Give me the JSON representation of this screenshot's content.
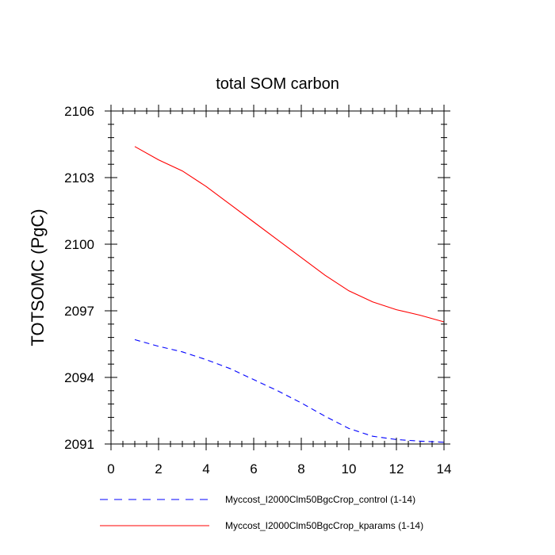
{
  "chart_data": {
    "type": "line",
    "title": "total SOM carbon",
    "xlabel": "",
    "ylabel": "TOTSOMC  (PgC)",
    "xlim": [
      0,
      14
    ],
    "ylim": [
      2091,
      2106
    ],
    "xticks": [
      0,
      2,
      4,
      6,
      8,
      10,
      12,
      14
    ],
    "xtick_labels": [
      "0",
      "2",
      "4",
      "6",
      "8",
      "10",
      "12",
      "14"
    ],
    "yticks": [
      2091,
      2094,
      2097,
      2100,
      2103,
      2106
    ],
    "ytick_labels": [
      "2091",
      "2094",
      "2097",
      "2100",
      "2103",
      "2106"
    ],
    "x_minor_step": 0.5,
    "y_minor_step": 0.6,
    "legend_position": "bottom",
    "series": [
      {
        "name": "Myccost_I2000Clm50BgcCrop_control (1-14)",
        "color": "#0000ff",
        "style": "dashed",
        "x": [
          1,
          2,
          3,
          4,
          5,
          6,
          7,
          8,
          9,
          10,
          11,
          12,
          13,
          14
        ],
        "values": [
          2095.7,
          2095.4,
          2095.15,
          2094.8,
          2094.4,
          2093.9,
          2093.4,
          2092.85,
          2092.25,
          2091.7,
          2091.35,
          2091.2,
          2091.13,
          2091.08
        ]
      },
      {
        "name": "Myccost_I2000Clm50BgcCrop_kparams (1-14)",
        "color": "#ff0000",
        "style": "solid",
        "x": [
          1,
          2,
          3,
          4,
          5,
          6,
          7,
          8,
          9,
          10,
          11,
          12,
          13,
          14
        ],
        "values": [
          2104.4,
          2103.8,
          2103.3,
          2102.6,
          2101.8,
          2101.0,
          2100.2,
          2099.4,
          2098.6,
          2097.9,
          2097.4,
          2097.05,
          2096.8,
          2096.5
        ]
      }
    ]
  }
}
